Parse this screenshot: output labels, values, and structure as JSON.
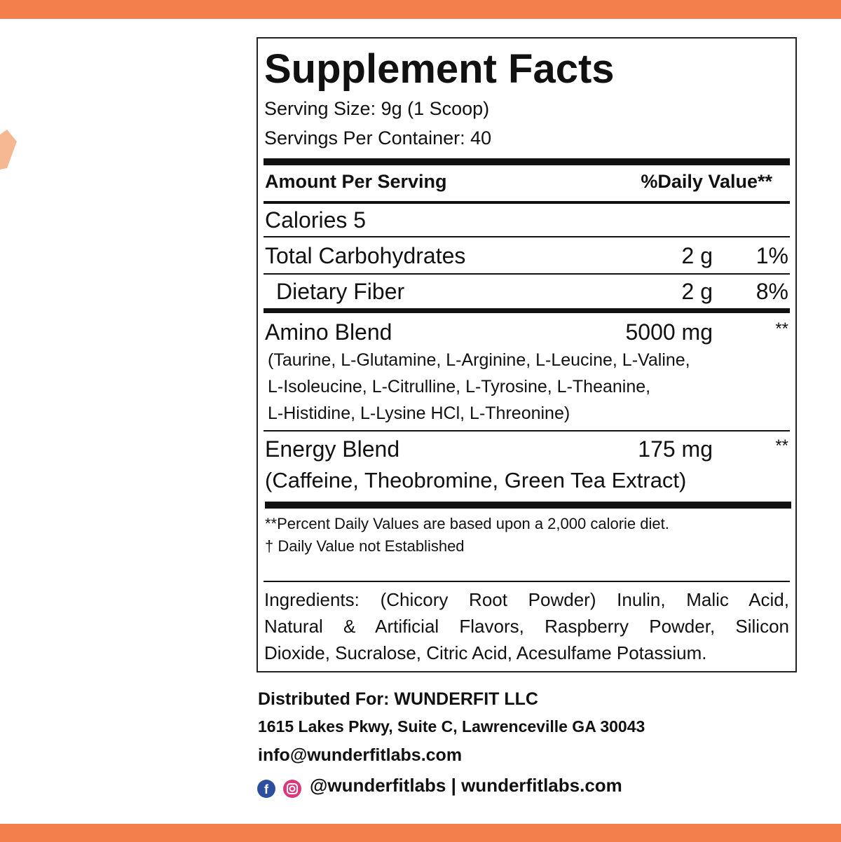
{
  "title": "Supplement Facts",
  "serving_size": "Serving Size: 9g (1 Scoop)",
  "servings_per_container": "Servings Per Container: 40",
  "header": {
    "amount": "Amount Per Serving",
    "daily_value": "%Daily Value**"
  },
  "calories": "Calories 5",
  "rows": [
    {
      "name": "Total Carbohydrates",
      "amount": "2 g",
      "daily_value": "1%"
    },
    {
      "name": "Dietary Fiber",
      "amount": "2 g",
      "daily_value": "8%"
    }
  ],
  "blends": [
    {
      "name": "Amino Blend",
      "amount": "5000 mg",
      "daily_value": "**",
      "details": [
        "(Taurine, L-Glutamine, L-Arginine, L-Leucine, L-Valine,",
        "L-Isoleucine, L-Citrulline, L-Tyrosine, L-Theanine,",
        "L-Histidine, L-Lysine HCl, L-Threonine)"
      ]
    },
    {
      "name": "Energy Blend",
      "amount": "175 mg",
      "daily_value": "**",
      "details": [
        "(Caffeine, Theobromine, Green Tea Extract)"
      ]
    }
  ],
  "footnotes": [
    "**Percent Daily Values are based upon a 2,000 calorie diet.",
    "† Daily Value not Established"
  ],
  "ingredients": [
    "Ingredients: (Chicory Root Powder) Inulin, Malic Acid,",
    "Natural & Artificial Flavors, Raspberry Powder, Silicon",
    "Dioxide, Sucralose, Citric Acid, Acesulfame Potassium."
  ],
  "distributor": {
    "name": "Distributed For: WUNDERFIT LLC",
    "address": "1615 Lakes Pkwy, Suite C, Lawrenceville GA 30043",
    "email": "info@wunderfitlabs.com",
    "social": "@wunderfitlabs | wunderfitlabs.com"
  }
}
